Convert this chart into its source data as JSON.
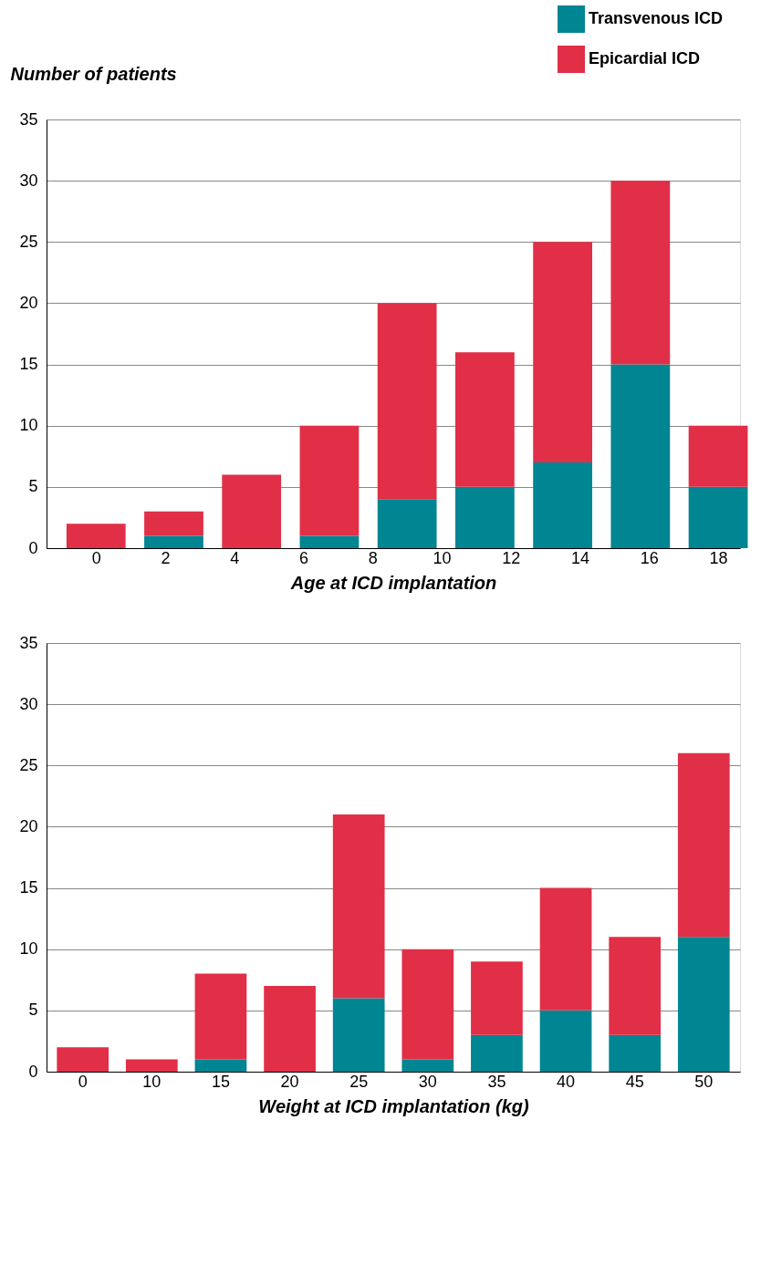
{
  "chart_data": [
    {
      "type": "bar",
      "stacked": true,
      "ylabel": "Number of patients",
      "xlabel": "Age at ICD implantation",
      "x": [
        0,
        2.25,
        4.5,
        6.75,
        9,
        11.25,
        13.5,
        15.75,
        18
      ],
      "xlim": [
        -1.3,
        18.5
      ],
      "xticks": [
        0,
        2,
        4,
        6,
        8,
        10,
        12,
        14,
        16,
        18
      ],
      "ylim": [
        0,
        35
      ],
      "yticks": [
        0,
        5,
        10,
        15,
        20,
        25,
        30,
        35
      ],
      "grid": "y",
      "legend": "top right",
      "series": [
        {
          "name": "Transvenous ICD",
          "color": "#008592",
          "values": [
            0,
            1,
            0,
            1,
            4,
            5,
            7,
            15,
            5
          ]
        },
        {
          "name": "Epicardial ICD",
          "color": "#e02f47",
          "values": [
            2,
            2,
            6,
            9,
            16,
            11,
            18,
            15,
            5
          ]
        }
      ]
    },
    {
      "type": "bar",
      "stacked": true,
      "xlabel": "Weight at ICD implantation (kg)",
      "categories": [
        "0",
        "10",
        "15",
        "20",
        "25",
        "30",
        "35",
        "40",
        "45",
        "50"
      ],
      "ylim": [
        0,
        35
      ],
      "yticks": [
        0,
        5,
        10,
        15,
        20,
        25,
        30,
        35
      ],
      "grid": "y",
      "series": [
        {
          "color": "#008592",
          "values": [
            0,
            0,
            1,
            0,
            6,
            1,
            3,
            5,
            3,
            11
          ]
        },
        {
          "color": "#e02f47",
          "values": [
            2,
            1,
            7,
            7,
            15,
            9,
            6,
            10,
            8,
            15
          ]
        }
      ]
    }
  ]
}
